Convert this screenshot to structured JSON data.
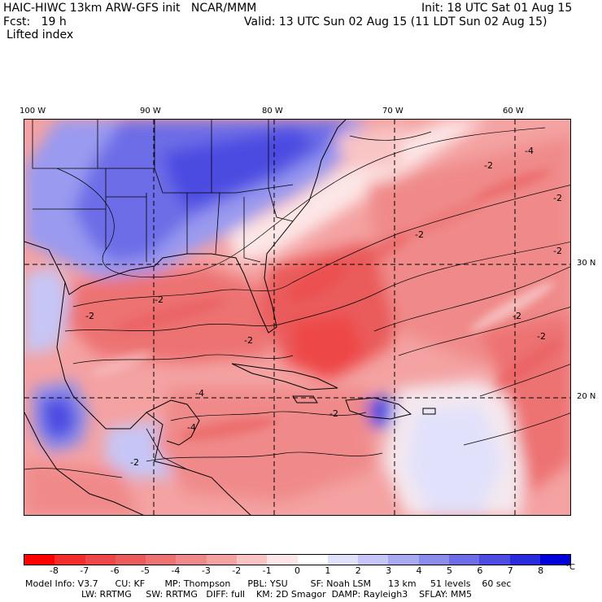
{
  "header": {
    "title": "HAIC-HIWC 13km ARW-GFS init   NCAR/MMM",
    "init": "Init: 18 UTC Sat 01 Aug 15",
    "fcst": "Fcst:   19 h",
    "valid": "Valid: 13 UTC Sun 02 Aug 15 (11 LDT Sun 02 Aug 15)",
    "field": "Lifted index"
  },
  "map": {
    "lon_labels": [
      "100 W",
      "90 W",
      "80 W",
      "70 W",
      "60 W"
    ],
    "lat_labels": [
      "30 N",
      "20 N"
    ],
    "contour_labels": [
      "-2",
      "-2",
      "-2",
      "-2",
      "-4",
      "-2",
      "-2",
      "-2",
      "-4",
      "-2",
      "-2",
      "-4",
      "-2",
      "-2"
    ]
  },
  "colorbar": {
    "colors": [
      "#ff0000",
      "#f52c2c",
      "#ee4747",
      "#ea5c5c",
      "#ed7272",
      "#f08a8a",
      "#f4a2a2",
      "#f9c4c4",
      "#fde6e6",
      "#ffffff",
      "#e1e1fb",
      "#c6c6f6",
      "#a9a9f1",
      "#8c8cec",
      "#6d6de7",
      "#4c4ce2",
      "#2a2ade",
      "#0000d8"
    ],
    "ticks": [
      "-8",
      "-7",
      "-6",
      "-5",
      "-4",
      "-3",
      "-2",
      "-1",
      "0",
      "1",
      "2",
      "3",
      "4",
      "5",
      "6",
      "7",
      "8"
    ],
    "unit": "°C"
  },
  "model_info": {
    "line1": "Model Info: V3.7      CU: KF       MP: Thompson      PBL: YSU        SF: Noah LSM      13 km     51 levels    60 sec",
    "line2": "LW: RRTMG     SW: RRTMG   DIFF: full    KM: 2D Smagor  DAMP: Rayleigh3    SFLAY: MM5"
  }
}
